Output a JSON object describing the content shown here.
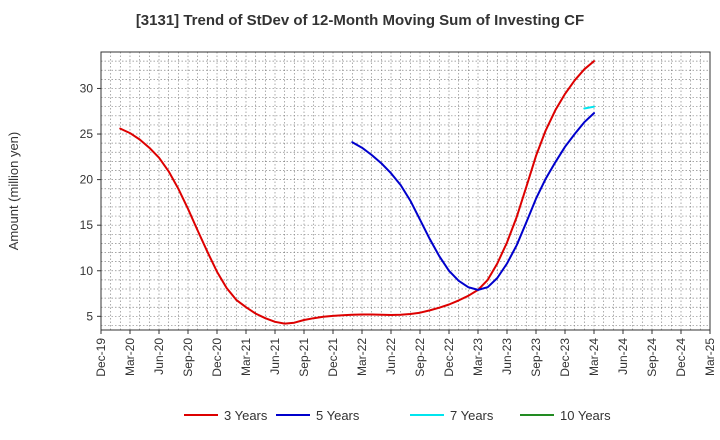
{
  "chart_data": {
    "type": "line",
    "title": "[3131]  Trend of StDev of 12-Month Moving Sum of Investing CF",
    "xlabel": "",
    "ylabel": "Amount (million yen)",
    "x_ticks": [
      "Dec-19",
      "Mar-20",
      "Jun-20",
      "Sep-20",
      "Dec-20",
      "Mar-21",
      "Jun-21",
      "Sep-21",
      "Dec-21",
      "Mar-22",
      "Jun-22",
      "Sep-22",
      "Dec-22",
      "Mar-23",
      "Jun-23",
      "Sep-23",
      "Dec-23",
      "Mar-24",
      "Jun-24",
      "Sep-24",
      "Dec-24",
      "Mar-25"
    ],
    "y_ticks": [
      5,
      10,
      15,
      20,
      25,
      30
    ],
    "ylim": [
      3.5,
      34
    ],
    "grid": true,
    "legend_position": "bottom",
    "series": [
      {
        "name": "3 Years",
        "color": "#dd0000",
        "points": [
          [
            "Feb-20",
            25.6
          ],
          [
            "Mar-20",
            25.1
          ],
          [
            "Apr-20",
            24.4
          ],
          [
            "May-20",
            23.5
          ],
          [
            "Jun-20",
            22.4
          ],
          [
            "Jul-20",
            20.9
          ],
          [
            "Aug-20",
            19.0
          ],
          [
            "Sep-20",
            16.8
          ],
          [
            "Oct-20",
            14.4
          ],
          [
            "Nov-20",
            12.1
          ],
          [
            "Dec-20",
            9.9
          ],
          [
            "Jan-21",
            8.1
          ],
          [
            "Feb-21",
            6.8
          ],
          [
            "Mar-21",
            6.0
          ],
          [
            "Apr-21",
            5.3
          ],
          [
            "May-21",
            4.8
          ],
          [
            "Jun-21",
            4.4
          ],
          [
            "Jul-21",
            4.2
          ],
          [
            "Aug-21",
            4.3
          ],
          [
            "Sep-21",
            4.6
          ],
          [
            "Oct-21",
            4.8
          ],
          [
            "Nov-21",
            4.95
          ],
          [
            "Dec-21",
            5.05
          ],
          [
            "Jan-22",
            5.12
          ],
          [
            "Feb-22",
            5.18
          ],
          [
            "Mar-22",
            5.2
          ],
          [
            "Apr-22",
            5.2
          ],
          [
            "May-22",
            5.17
          ],
          [
            "Jun-22",
            5.15
          ],
          [
            "Jul-22",
            5.17
          ],
          [
            "Aug-22",
            5.25
          ],
          [
            "Sep-22",
            5.4
          ],
          [
            "Oct-22",
            5.65
          ],
          [
            "Nov-22",
            5.95
          ],
          [
            "Dec-22",
            6.3
          ],
          [
            "Jan-23",
            6.75
          ],
          [
            "Feb-23",
            7.25
          ],
          [
            "Mar-23",
            7.9
          ],
          [
            "Apr-23",
            9.0
          ],
          [
            "May-23",
            10.8
          ],
          [
            "Jun-23",
            13.1
          ],
          [
            "Jul-23",
            15.9
          ],
          [
            "Aug-23",
            19.2
          ],
          [
            "Sep-23",
            22.6
          ],
          [
            "Oct-23",
            25.4
          ],
          [
            "Nov-23",
            27.6
          ],
          [
            "Dec-23",
            29.4
          ],
          [
            "Jan-24",
            30.9
          ],
          [
            "Feb-24",
            32.1
          ],
          [
            "Mar-24",
            33.0
          ]
        ]
      },
      {
        "name": "5 Years",
        "color": "#0000cc",
        "points": [
          [
            "Feb-22",
            24.1
          ],
          [
            "Mar-22",
            23.5
          ],
          [
            "Apr-22",
            22.7
          ],
          [
            "May-22",
            21.8
          ],
          [
            "Jun-22",
            20.7
          ],
          [
            "Jul-22",
            19.4
          ],
          [
            "Aug-22",
            17.7
          ],
          [
            "Sep-22",
            15.6
          ],
          [
            "Oct-22",
            13.5
          ],
          [
            "Nov-22",
            11.6
          ],
          [
            "Dec-22",
            10.0
          ],
          [
            "Jan-23",
            8.9
          ],
          [
            "Feb-23",
            8.2
          ],
          [
            "Mar-23",
            7.9
          ],
          [
            "Apr-23",
            8.2
          ],
          [
            "May-23",
            9.2
          ],
          [
            "Jun-23",
            10.8
          ],
          [
            "Jul-23",
            12.8
          ],
          [
            "Aug-23",
            15.3
          ],
          [
            "Sep-23",
            17.9
          ],
          [
            "Oct-23",
            20.1
          ],
          [
            "Nov-23",
            21.9
          ],
          [
            "Dec-23",
            23.6
          ],
          [
            "Jan-24",
            25.0
          ],
          [
            "Feb-24",
            26.3
          ],
          [
            "Mar-24",
            27.3
          ]
        ]
      },
      {
        "name": "7 Years",
        "color": "#00e5ee",
        "points": [
          [
            "Feb-24",
            27.8
          ],
          [
            "Mar-24",
            28.0
          ]
        ]
      },
      {
        "name": "10 Years",
        "color": "#228b22",
        "points": []
      }
    ]
  }
}
